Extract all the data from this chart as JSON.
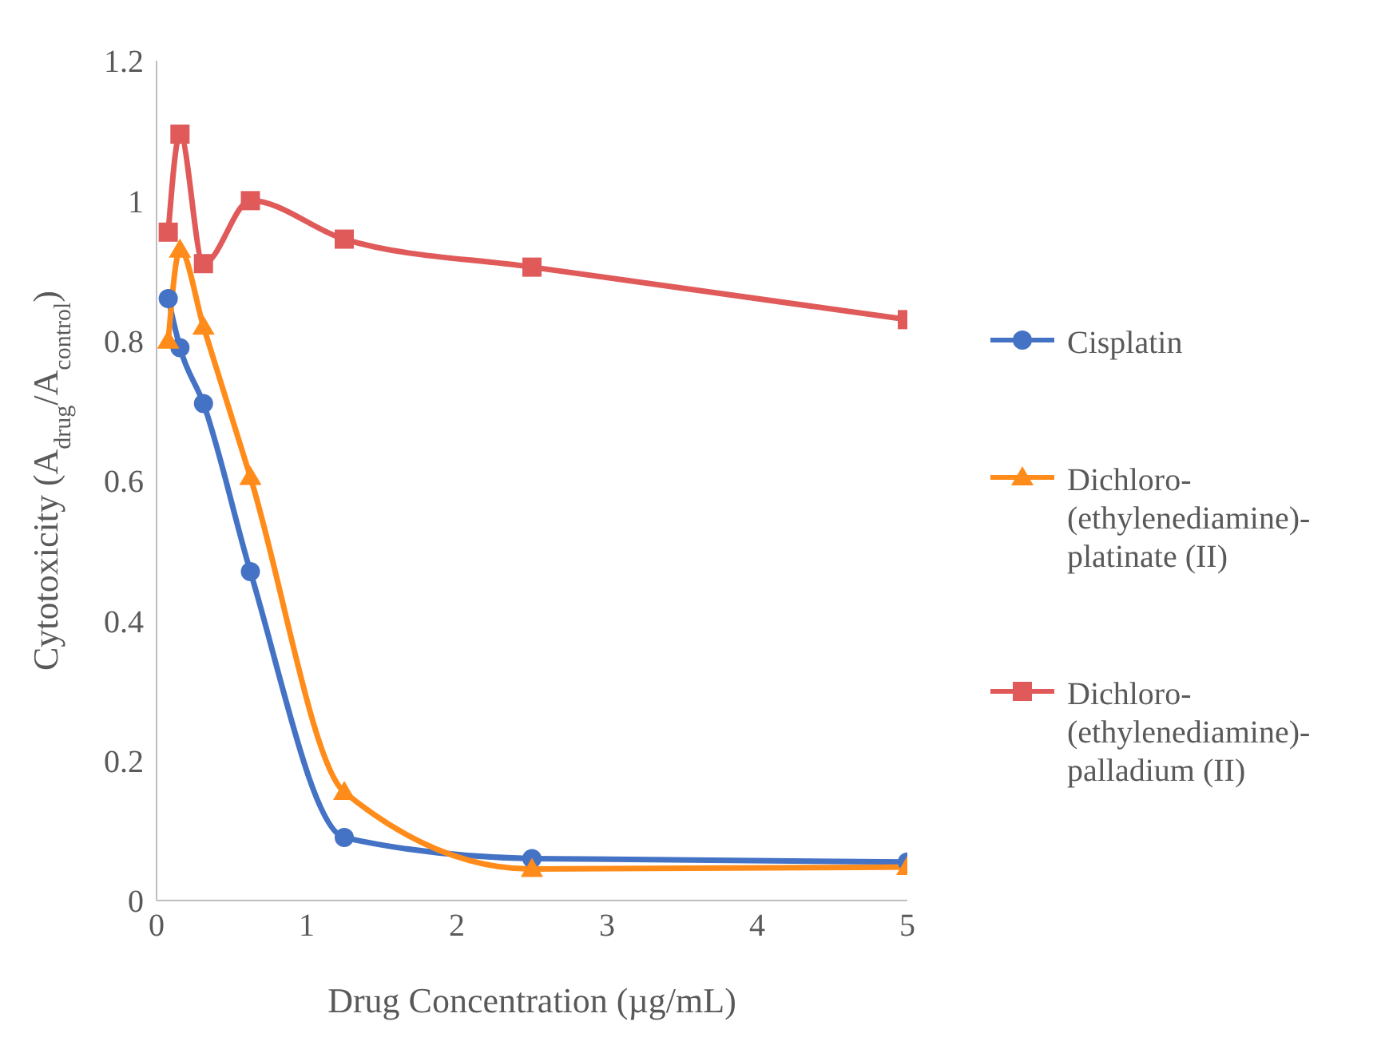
{
  "chart_data": {
    "type": "line",
    "xlabel": "Drug Concentration (µg/mL)",
    "ylabel": "Cytotoxicity (A$_{drug}$/A$_{control}$)",
    "x": [
      0.078,
      0.156,
      0.3125,
      0.625,
      1.25,
      2.5,
      5
    ],
    "series": [
      {
        "name": "Cisplatin",
        "color": "#4472c4",
        "marker": "circle",
        "values": [
          0.86,
          0.79,
          0.71,
          0.47,
          0.09,
          0.06,
          0.055
        ]
      },
      {
        "name": "Dichloro-(ethylenediamine)-platinate (II)",
        "color": "#ff8c1a",
        "marker": "triangle",
        "values": [
          0.8,
          0.93,
          0.82,
          0.605,
          0.155,
          0.045,
          0.048
        ]
      },
      {
        "name": "Dichloro-(ethylenediamine)-palladium (II)",
        "color": "#e05a5a",
        "marker": "square",
        "values": [
          0.955,
          1.095,
          0.91,
          1.0,
          0.945,
          0.905,
          0.83
        ]
      }
    ],
    "xlim": [
      0,
      5
    ],
    "xticks": [
      0,
      1,
      2,
      3,
      4,
      5
    ],
    "ylim": [
      0,
      1.2
    ],
    "yticks": [
      0,
      0.2,
      0.4,
      0.6,
      0.8,
      1,
      1.2
    ],
    "grid": false,
    "legend": "right",
    "line_style": "solid"
  }
}
